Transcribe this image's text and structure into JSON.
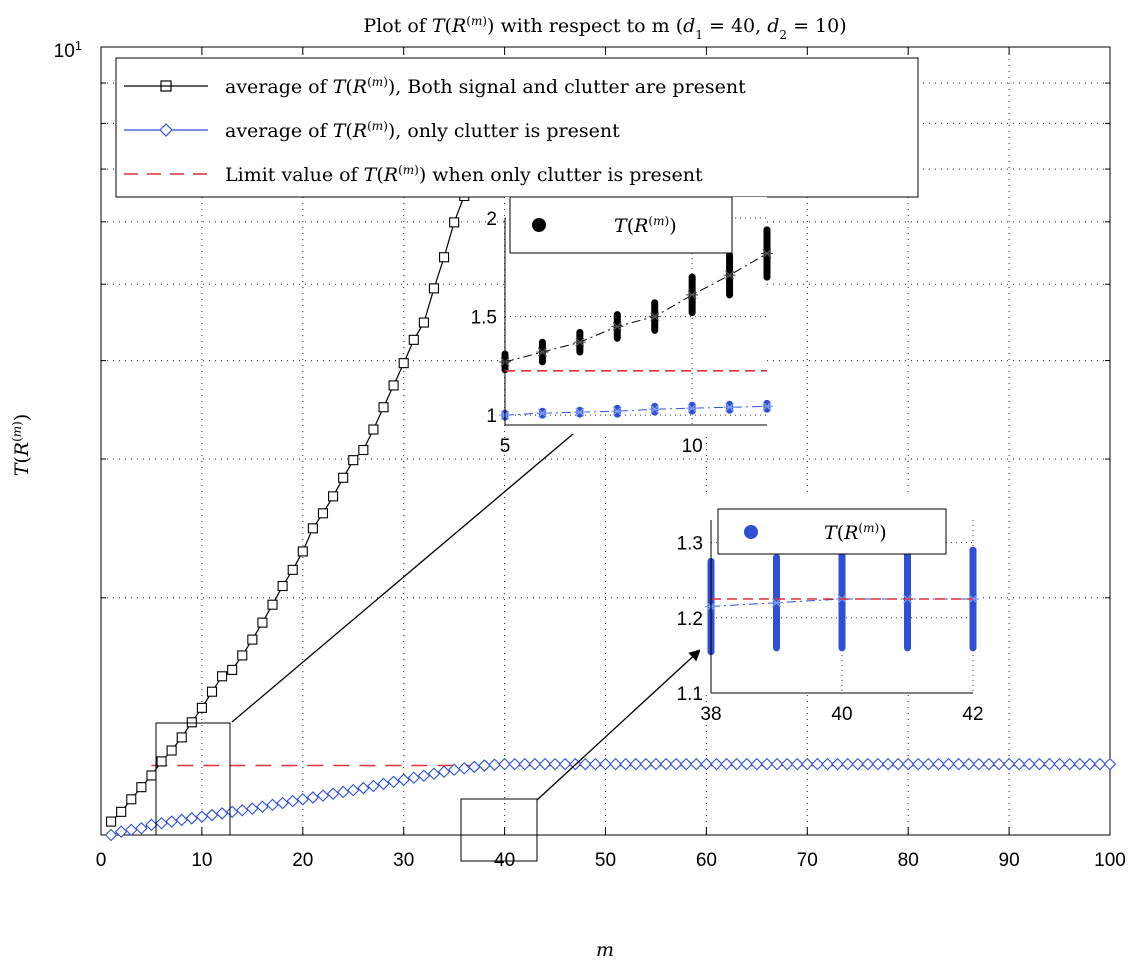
{
  "chart_data": [
    {
      "type": "line",
      "title": "Plot of T(R^(m)) with respect to m (d₁ = 40, d₂ = 10)",
      "xlabel": "m",
      "ylabel": "T(R^(m))",
      "xlim": [
        0,
        100
      ],
      "ylim": [
        1,
        10
      ],
      "yscale": "log",
      "xticks": [
        "0",
        "10",
        "20",
        "30",
        "40",
        "50",
        "60",
        "70",
        "80",
        "90",
        "100"
      ],
      "yticks": [
        "10^1"
      ],
      "grid": true,
      "legend_position": "top-left",
      "series": [
        {
          "name": "average of T(R^(m)), Both signal and clutter are present",
          "color": "#000000",
          "marker": "square",
          "x": [
            1,
            2,
            3,
            4,
            5,
            6,
            7,
            8,
            9,
            10,
            11,
            12,
            13,
            14,
            15,
            16,
            17,
            18,
            19,
            20,
            21,
            22,
            23,
            24,
            25,
            26,
            27,
            28,
            29,
            30,
            31,
            32,
            33,
            34,
            35,
            36,
            37
          ],
          "values": [
            1.04,
            1.07,
            1.11,
            1.15,
            1.19,
            1.24,
            1.28,
            1.33,
            1.39,
            1.45,
            1.52,
            1.59,
            1.62,
            1.69,
            1.77,
            1.86,
            1.96,
            2.07,
            2.17,
            2.29,
            2.45,
            2.56,
            2.69,
            2.84,
            2.99,
            3.08,
            3.27,
            3.49,
            3.72,
            3.97,
            4.25,
            4.47,
            4.94,
            5.41,
            5.99,
            6.47,
            6.92
          ]
        },
        {
          "name": "average of T(R^(m)), only clutter is present",
          "color": "#2f4fd6",
          "marker": "diamond",
          "x": [
            1,
            2,
            3,
            4,
            5,
            6,
            7,
            8,
            9,
            10,
            11,
            12,
            13,
            14,
            15,
            16,
            17,
            18,
            19,
            20,
            21,
            22,
            23,
            24,
            25,
            26,
            27,
            28,
            29,
            30,
            31,
            32,
            33,
            34,
            35,
            36,
            37,
            38,
            39,
            40,
            100
          ],
          "values": [
            1.0,
            1.01,
            1.015,
            1.02,
            1.03,
            1.035,
            1.04,
            1.045,
            1.05,
            1.055,
            1.06,
            1.065,
            1.07,
            1.075,
            1.08,
            1.086,
            1.092,
            1.098,
            1.104,
            1.11,
            1.116,
            1.122,
            1.128,
            1.134,
            1.14,
            1.147,
            1.154,
            1.161,
            1.168,
            1.175,
            1.182,
            1.189,
            1.196,
            1.203,
            1.21,
            1.215,
            1.22,
            1.225,
            1.228,
            1.23,
            1.23
          ]
        },
        {
          "name": "Limit value of T(R^(m)) when only clutter is present",
          "color": "#e0303a",
          "style": "dashed",
          "x": [
            5,
            100
          ],
          "values": [
            1.225,
            1.225
          ]
        }
      ]
    },
    {
      "type": "scatter",
      "position": "inset-upper",
      "xlim": [
        5,
        12
      ],
      "ylim": [
        0.95,
        2.0
      ],
      "xticks": [
        "5",
        "10"
      ],
      "yticks": [
        "1",
        "1.5",
        "2"
      ],
      "legend": "T(R^(m))",
      "series": [
        {
          "name": "T(R^(m))",
          "color": "#000000",
          "x": [
            5,
            6,
            7,
            8,
            9,
            10,
            11,
            12
          ],
          "values": [
            1.27,
            1.32,
            1.37,
            1.45,
            1.5,
            1.61,
            1.71,
            1.82
          ],
          "spread": [
            0.04,
            0.05,
            0.05,
            0.06,
            0.07,
            0.09,
            0.1,
            0.12
          ]
        },
        {
          "color": "#2f4fd6",
          "x": [
            5,
            6,
            7,
            8,
            9,
            10,
            11,
            12
          ],
          "values": [
            1.0,
            1.01,
            1.015,
            1.02,
            1.03,
            1.035,
            1.04,
            1.045
          ],
          "spread": [
            0.01,
            0.01,
            0.01,
            0.015,
            0.015,
            0.015,
            0.015,
            0.015
          ]
        },
        {
          "color": "#e0303a",
          "style": "dashed",
          "x": [
            5,
            12
          ],
          "values": [
            1.225,
            1.225
          ]
        }
      ]
    },
    {
      "type": "scatter",
      "position": "inset-lower",
      "xlim": [
        38,
        42
      ],
      "ylim": [
        1.1,
        1.33
      ],
      "xticks": [
        "38",
        "40",
        "42"
      ],
      "yticks": [
        "1.1",
        "1.2",
        "1.3"
      ],
      "legend": "T(R^(m))",
      "series": [
        {
          "name": "T(R^(m))",
          "color": "#2f4fd6",
          "x": [
            38,
            39,
            40,
            41,
            42
          ],
          "values": [
            1.215,
            1.22,
            1.225,
            1.225,
            1.225
          ],
          "spread": [
            0.06,
            0.06,
            0.065,
            0.065,
            0.065
          ]
        },
        {
          "color": "#e0303a",
          "style": "dashed",
          "x": [
            38,
            42
          ],
          "values": [
            1.225,
            1.225
          ]
        }
      ]
    }
  ]
}
